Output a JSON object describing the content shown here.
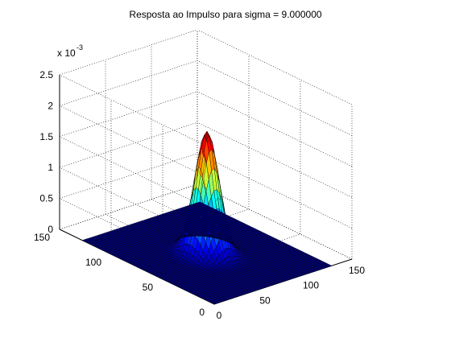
{
  "chart_data": {
    "type": "surface",
    "title": "Resposta ao Impulso para sigma = 9.000000",
    "xlabel": "",
    "ylabel": "",
    "zlabel": "",
    "x_ticks": [
      "0",
      "50",
      "100",
      "150"
    ],
    "y_ticks": [
      "0",
      "50",
      "100",
      "150"
    ],
    "z_ticks": [
      "0",
      "0.5",
      "1",
      "1.5",
      "2",
      "2.5"
    ],
    "z_exponent_base": "x 10",
    "z_exponent": "-3",
    "xlim": [
      0,
      150
    ],
    "ylim": [
      0,
      150
    ],
    "zlim": [
      0,
      0.0025
    ],
    "grid": true,
    "colormap": "jet",
    "surface": {
      "function": "gaussian-2d",
      "grid_size": [
        128,
        128
      ],
      "center": [
        64,
        64
      ],
      "sigma": 9,
      "peak": 0.00197
    }
  }
}
